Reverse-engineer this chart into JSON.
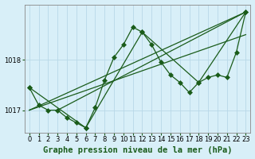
{
  "title": "Graphe pression niveau de la mer (hPa)",
  "background_color": "#d8eff8",
  "line_color": "#1a5c1a",
  "grid_color": "#b8d8e8",
  "xlim": [
    -0.5,
    23.5
  ],
  "ylim": [
    1016.55,
    1019.1
  ],
  "yticks": [
    1017,
    1018
  ],
  "xticks": [
    0,
    1,
    2,
    3,
    4,
    5,
    6,
    7,
    8,
    9,
    10,
    11,
    12,
    13,
    14,
    15,
    16,
    17,
    18,
    19,
    20,
    21,
    22,
    23
  ],
  "series": [
    {
      "x": [
        0,
        1,
        2,
        3,
        4,
        5,
        6,
        7,
        8,
        9,
        10,
        11,
        12,
        13,
        14,
        15,
        16,
        17,
        18,
        19,
        20,
        21,
        22,
        23
      ],
      "y": [
        1017.45,
        1017.1,
        1017.0,
        1017.0,
        1016.85,
        1016.75,
        1016.65,
        1017.05,
        1017.6,
        1018.05,
        1018.3,
        1018.65,
        1018.55,
        1018.3,
        1017.95,
        1017.7,
        1017.55,
        1017.35,
        1017.55,
        1017.65,
        1017.7,
        1017.65,
        1018.15,
        1018.95
      ],
      "marker": true
    },
    {
      "x": [
        0,
        6,
        12,
        18,
        23
      ],
      "y": [
        1017.45,
        1016.65,
        1018.55,
        1017.55,
        1018.95
      ],
      "marker": true
    },
    {
      "x": [
        0,
        23
      ],
      "y": [
        1017.0,
        1018.95
      ],
      "marker": false
    },
    {
      "x": [
        3,
        23
      ],
      "y": [
        1017.0,
        1018.95
      ],
      "marker": false
    },
    {
      "x": [
        0,
        23
      ],
      "y": [
        1017.0,
        1018.5
      ],
      "marker": false
    }
  ],
  "markersize": 3,
  "linewidth": 0.9,
  "title_fontsize": 7.5,
  "tick_fontsize": 6
}
